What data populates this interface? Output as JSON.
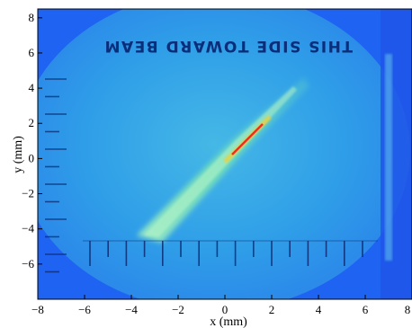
{
  "image": {
    "axes": {
      "x_label": "x (mm)",
      "y_label": "y (mm)",
      "xlim": [
        -8,
        8
      ],
      "ylim": [
        -8,
        8.5
      ],
      "x_ticks": [
        "−8",
        "−6",
        "−4",
        "−2",
        "0",
        "2",
        "4",
        "6",
        "8"
      ],
      "y_ticks": [
        "8",
        "6",
        "4",
        "2",
        "0",
        "−2",
        "−4",
        "−6"
      ]
    },
    "mirrored_caption": "THIS SIDE TOWARD BEAM",
    "colors": {
      "background": "#1f63f2",
      "screen": "#2a9be8",
      "beam_core": "#e8321a",
      "beam_glow": "#8fe8a6",
      "frame_edge": "#0f2fd6"
    }
  }
}
